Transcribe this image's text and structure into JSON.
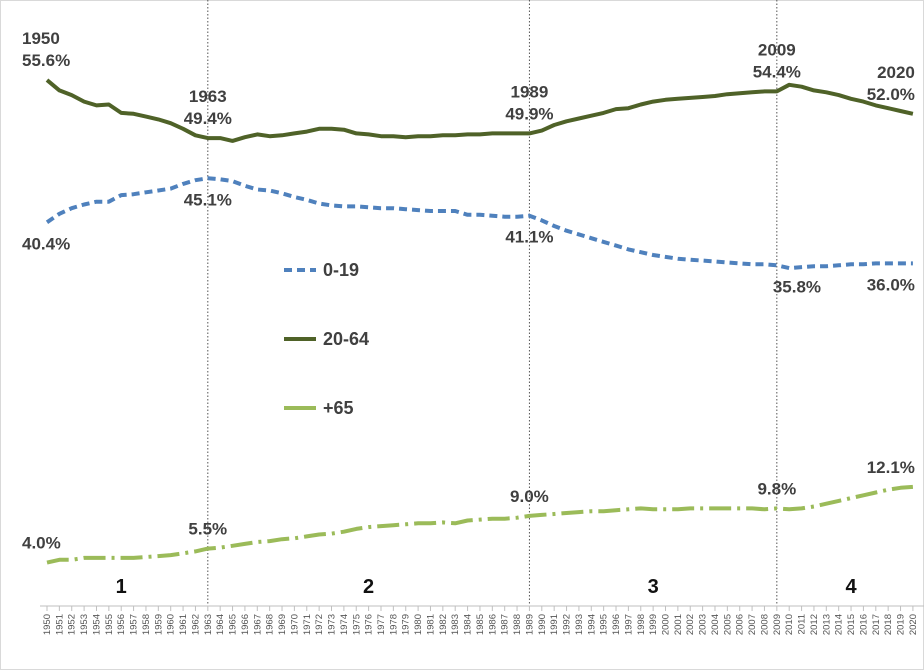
{
  "chart_data": {
    "type": "line",
    "title": "",
    "xlabel": "",
    "ylabel": "",
    "ylim": [
      0,
      60
    ],
    "grid": false,
    "legend": "center-left",
    "x": [
      1950,
      1951,
      1952,
      1953,
      1954,
      1955,
      1956,
      1957,
      1958,
      1959,
      1960,
      1961,
      1962,
      1963,
      1964,
      1965,
      1966,
      1967,
      1968,
      1969,
      1970,
      1971,
      1972,
      1973,
      1974,
      1975,
      1976,
      1977,
      1978,
      1979,
      1980,
      1981,
      1982,
      1983,
      1984,
      1985,
      1986,
      1987,
      1988,
      1989,
      1990,
      1991,
      1992,
      1993,
      1994,
      1995,
      1996,
      1997,
      1998,
      1999,
      2000,
      2001,
      2002,
      2003,
      2004,
      2005,
      2006,
      2007,
      2008,
      2009,
      2010,
      2011,
      2012,
      2013,
      2014,
      2015,
      2016,
      2017,
      2018,
      2019,
      2020
    ],
    "x_tick_labels": [
      "1950",
      "1951",
      "1952",
      "1953",
      "1954",
      "1955",
      "1956",
      "1957",
      "1958",
      "1959",
      "1960",
      "1961",
      "1962",
      "1963",
      "1964",
      "1965",
      "1966",
      "1967",
      "1968",
      "1969",
      "1970",
      "1971",
      "1972",
      "1973",
      "1974",
      "1975",
      "1976",
      "1977",
      "1978",
      "1979",
      "1980",
      "1981",
      "1982",
      "1983",
      "1984",
      "1985",
      "1986",
      "1987",
      "1988",
      "1989",
      "1990",
      "1991",
      "1992",
      "1993",
      "1994",
      "1995",
      "1996",
      "1997",
      "1998",
      "1999",
      "2000",
      "2001",
      "2002",
      "2003",
      "2004",
      "2005",
      "2006",
      "2007",
      "2008",
      "2009",
      "2010",
      "2011",
      "2012",
      "2013",
      "2014",
      "2015",
      "2016",
      "2017",
      "2018",
      "2019",
      "2020"
    ],
    "series": [
      {
        "name": "0-19",
        "color": "#4f81bd",
        "style": "dashed",
        "values": [
          40.4,
          41.3,
          41.9,
          42.3,
          42.6,
          42.6,
          43.3,
          43.4,
          43.6,
          43.8,
          44.0,
          44.5,
          44.9,
          45.1,
          45.0,
          44.8,
          44.3,
          43.9,
          43.8,
          43.5,
          43.1,
          42.8,
          42.4,
          42.2,
          42.1,
          42.1,
          42.0,
          41.9,
          41.9,
          41.8,
          41.7,
          41.6,
          41.6,
          41.6,
          41.2,
          41.2,
          41.1,
          41.0,
          41.0,
          41.1,
          40.6,
          40.0,
          39.5,
          39.1,
          38.7,
          38.3,
          37.9,
          37.5,
          37.2,
          36.9,
          36.7,
          36.5,
          36.4,
          36.3,
          36.2,
          36.1,
          36.0,
          35.9,
          35.9,
          35.8,
          35.5,
          35.6,
          35.7,
          35.7,
          35.8,
          35.9,
          35.9,
          36.0,
          36.0,
          36.0,
          36.0
        ]
      },
      {
        "name": "20-64",
        "color": "#4f6228",
        "style": "solid",
        "values": [
          55.6,
          54.5,
          54.0,
          53.3,
          52.9,
          53.0,
          52.1,
          52.0,
          51.7,
          51.4,
          51.0,
          50.4,
          49.7,
          49.4,
          49.4,
          49.1,
          49.5,
          49.8,
          49.6,
          49.7,
          49.9,
          50.1,
          50.4,
          50.4,
          50.3,
          49.9,
          49.8,
          49.6,
          49.6,
          49.5,
          49.6,
          49.6,
          49.7,
          49.7,
          49.8,
          49.8,
          49.9,
          49.9,
          49.9,
          49.9,
          50.2,
          50.8,
          51.2,
          51.5,
          51.8,
          52.1,
          52.5,
          52.6,
          53.0,
          53.3,
          53.5,
          53.6,
          53.7,
          53.8,
          53.9,
          54.1,
          54.2,
          54.3,
          54.4,
          54.4,
          55.1,
          54.9,
          54.5,
          54.3,
          54.0,
          53.6,
          53.3,
          52.9,
          52.6,
          52.3,
          52.0
        ]
      },
      {
        "name": "+65",
        "color": "#9bbb59",
        "style": "dash-dot",
        "values": [
          4.0,
          4.3,
          4.3,
          4.5,
          4.5,
          4.5,
          4.5,
          4.5,
          4.6,
          4.7,
          4.8,
          5.0,
          5.2,
          5.5,
          5.6,
          5.8,
          6.0,
          6.2,
          6.3,
          6.5,
          6.6,
          6.8,
          7.0,
          7.1,
          7.3,
          7.6,
          7.8,
          7.9,
          8.0,
          8.1,
          8.2,
          8.2,
          8.3,
          8.2,
          8.5,
          8.6,
          8.7,
          8.7,
          8.8,
          9.0,
          9.1,
          9.2,
          9.3,
          9.4,
          9.5,
          9.5,
          9.6,
          9.7,
          9.8,
          9.7,
          9.7,
          9.7,
          9.8,
          9.8,
          9.8,
          9.8,
          9.8,
          9.8,
          9.7,
          9.8,
          9.7,
          9.8,
          10.0,
          10.3,
          10.6,
          10.9,
          11.2,
          11.5,
          11.8,
          12.0,
          12.1
        ]
      }
    ],
    "phase_dividers": [
      1963,
      1989,
      2009
    ],
    "phases": [
      {
        "label": "1",
        "x": 1956
      },
      {
        "label": "2",
        "x": 1976
      },
      {
        "label": "3",
        "x": 1999
      },
      {
        "label": "4",
        "x": 2015
      }
    ],
    "annotations": [
      {
        "series": 0,
        "x": 1950,
        "text": "40.4%",
        "pos": "below"
      },
      {
        "series": 0,
        "x": 1963,
        "text": "45.1%",
        "pos": "below"
      },
      {
        "series": 0,
        "x": 1989,
        "text": "41.1%",
        "pos": "below"
      },
      {
        "series": 0,
        "x": 2009,
        "text": "35.8%",
        "pos": "below-right"
      },
      {
        "series": 0,
        "x": 2020,
        "text": "36.0%",
        "pos": "below-left"
      },
      {
        "series": 1,
        "x": 1950,
        "text": "55.6%",
        "pos": "above",
        "year": "1950"
      },
      {
        "series": 1,
        "x": 1963,
        "text": "49.4%",
        "pos": "above",
        "year": "1963"
      },
      {
        "series": 1,
        "x": 1989,
        "text": "49.9%",
        "pos": "above",
        "year": "1989"
      },
      {
        "series": 1,
        "x": 2009,
        "text": "54.4%",
        "pos": "above",
        "year": "2009"
      },
      {
        "series": 1,
        "x": 2020,
        "text": "52.0%",
        "pos": "above-left",
        "year": "2020"
      },
      {
        "series": 2,
        "x": 1950,
        "text": "4.0%",
        "pos": "above"
      },
      {
        "series": 2,
        "x": 1963,
        "text": "5.5%",
        "pos": "above"
      },
      {
        "series": 2,
        "x": 1989,
        "text": "9.0%",
        "pos": "above"
      },
      {
        "series": 2,
        "x": 2009,
        "text": "9.8%",
        "pos": "above"
      },
      {
        "series": 2,
        "x": 2020,
        "text": "12.1%",
        "pos": "above-left"
      }
    ]
  }
}
